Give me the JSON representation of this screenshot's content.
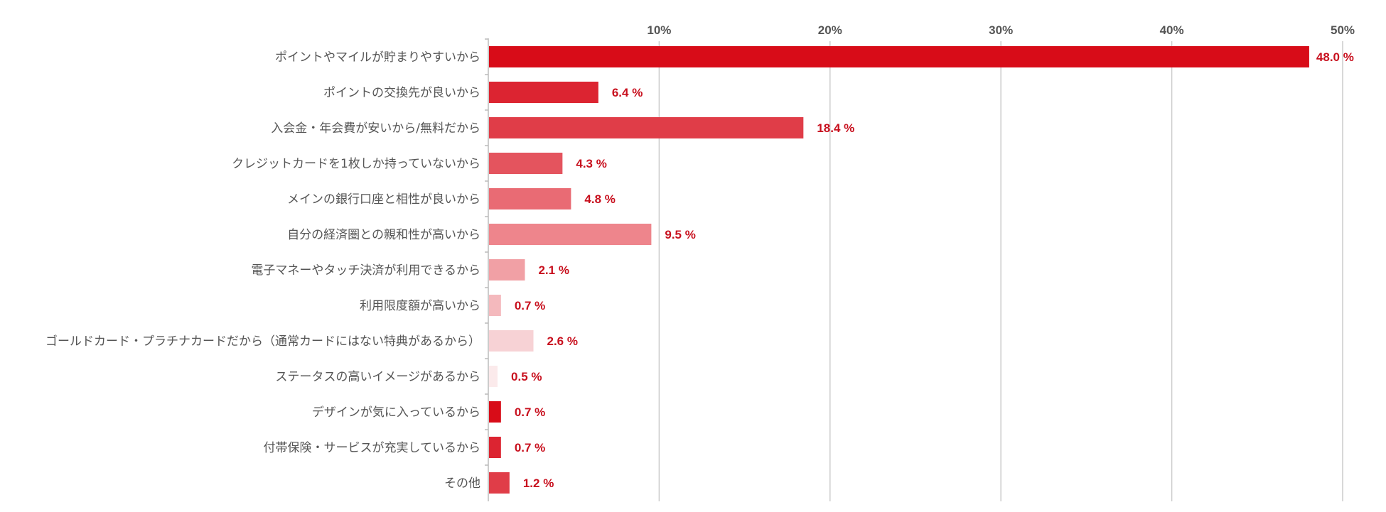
{
  "chart_data": {
    "type": "bar",
    "orientation": "horizontal",
    "categories": [
      "ポイントやマイルが貯まりやすいから",
      "ポイントの交換先が良いから",
      "入会金・年会費が安いから/無料だから",
      "クレジットカードを1枚しか持っていないから",
      "メインの銀行口座と相性が良いから",
      "自分の経済圏との親和性が高いから",
      "電子マネーやタッチ決済が利用できるから",
      "利用限度額が高いから",
      "ゴールドカード・プラチナカードだから（通常カードにはない特典があるから）",
      "ステータスの高いイメージがあるから",
      "デザインが気に入っているから",
      "付帯保険・サービスが充実しているから",
      "その他"
    ],
    "values": [
      48.0,
      6.4,
      18.4,
      4.3,
      4.8,
      9.5,
      2.1,
      0.7,
      2.6,
      0.5,
      0.7,
      0.7,
      1.2
    ],
    "value_labels": [
      "48.0 %",
      "6.4 %",
      "18.4 %",
      "4.3 %",
      "4.8 %",
      "9.5 %",
      "2.1 %",
      "0.7 %",
      "2.6 %",
      "0.5 %",
      "0.7 %",
      "0.7 %",
      "1.2 %"
    ],
    "bar_colors": [
      "#d80c18",
      "#dc2431",
      "#e03d48",
      "#e4545e",
      "#e96b74",
      "#ee858c",
      "#f1a0a5",
      "#f4b9bd",
      "#f7d2d5",
      "#fbeaeb",
      "#d80c18",
      "#dc2431",
      "#e03d48"
    ],
    "x_ticks": [
      "10%",
      "20%",
      "30%",
      "40%",
      "50%"
    ],
    "x_tick_values": [
      10,
      20,
      30,
      40,
      50
    ],
    "xlim": [
      0,
      50
    ],
    "axis_position": "top",
    "grid": true,
    "value_label_color": "#c8101e",
    "title": "",
    "xlabel": "",
    "ylabel": ""
  }
}
